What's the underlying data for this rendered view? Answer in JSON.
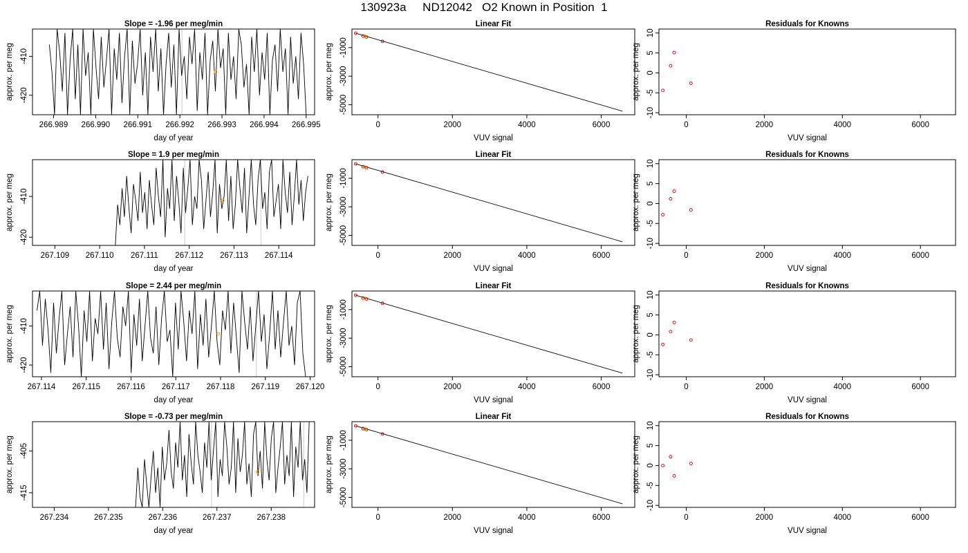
{
  "title": "130923a     ND12042   O2 Known in Position  1",
  "chart_data": [
    {
      "type": "line",
      "title": "Slope =  -1.96  per meg/min",
      "xlabel": "day of year",
      "ylabel": "approx. per meg",
      "xlim": [
        266.9885,
        266.9952
      ],
      "ylim": [
        -425,
        -403
      ],
      "xticks": [
        266.989,
        266.99,
        266.991,
        266.992,
        266.993,
        266.994,
        266.995
      ],
      "xtick_labels": [
        "266.989",
        "266.990",
        "266.991",
        "266.992",
        "266.993",
        "266.994",
        "266.995"
      ],
      "yticks": [
        -410,
        -420
      ],
      "ytick_labels": [
        "-410",
        "-420"
      ],
      "series": [
        {
          "x_start": 266.9889,
          "x_end": 266.995,
          "values": [
            -407,
            -414,
            -425,
            -403,
            -409,
            -419,
            -404,
            -425,
            -411,
            -403,
            -421,
            -407,
            -425,
            -403,
            -415,
            -409,
            -425,
            -403,
            -413,
            -421,
            -405,
            -418,
            -411,
            -403,
            -425,
            -408,
            -416,
            -404,
            -422,
            -410,
            -403,
            -425,
            -406,
            -417,
            -412,
            -403,
            -420,
            -409,
            -425,
            -405,
            -414,
            -403,
            -419,
            -408,
            -425,
            -412,
            -404,
            -418,
            -407,
            -425,
            -403,
            -415,
            -410,
            -421,
            -405,
            -412,
            -403,
            -424,
            -409,
            -416,
            -404,
            -425,
            -411,
            -406,
            -419,
            -403,
            -413,
            -408,
            -425,
            -404,
            -416,
            -410,
            -421,
            -403,
            -407,
            -418,
            -412,
            -425,
            -405,
            -414,
            -403,
            -420,
            -409,
            -416,
            -404,
            -425,
            -411,
            -407,
            -419,
            -403,
            -414,
            -408,
            -425,
            -405,
            -417,
            -410,
            -421,
            -404,
            -412,
            -425
          ]
        }
      ],
      "highlights": [
        {
          "x": 266.99285,
          "y": -414
        }
      ],
      "vlines": [
        266.99205
      ]
    },
    {
      "type": "scatter",
      "title": "Linear Fit",
      "xlabel": "VUV signal",
      "ylabel": "approx. per meg",
      "xlim": [
        -700,
        6900
      ],
      "ylim": [
        -5700,
        300
      ],
      "xticks": [
        0,
        2000,
        4000,
        6000
      ],
      "xtick_labels": [
        "0",
        "2000",
        "4000",
        "6000"
      ],
      "yticks": [
        -1000,
        -3000,
        -5000
      ],
      "ytick_labels": [
        "-1000",
        "-3000",
        "-5000"
      ],
      "points": [
        [
          -600,
          8
        ],
        [
          -400,
          -190
        ],
        [
          -310,
          -260
        ],
        [
          120,
          -560
        ]
      ],
      "highlights": [
        {
          "x": -350,
          "y": -215
        }
      ],
      "fit_line": [
        [
          -600,
          8
        ],
        [
          6570,
          -5450
        ]
      ]
    },
    {
      "type": "scatter",
      "title": "Residuals for Knowns",
      "xlabel": "VUV signal",
      "ylabel": "approx. per meg",
      "xlim": [
        -700,
        6900
      ],
      "ylim": [
        -10.5,
        11
      ],
      "xticks": [
        0,
        2000,
        4000,
        6000
      ],
      "xtick_labels": [
        "0",
        "2000",
        "4000",
        "6000"
      ],
      "yticks": [
        10,
        5,
        0,
        -5,
        -10
      ],
      "ytick_labels": [
        "10",
        "5",
        "0",
        "-5",
        "-10"
      ],
      "points": [
        [
          -600,
          -4.4
        ],
        [
          -400,
          1.8
        ],
        [
          -310,
          5.1
        ],
        [
          120,
          -2.6
        ]
      ]
    },
    {
      "type": "line",
      "title": "Slope =  1.9  per meg/min",
      "xlabel": "day of year",
      "ylabel": "approx. per meg",
      "xlim": [
        267.1085,
        267.1148
      ],
      "ylim": [
        -422,
        -401
      ],
      "xticks": [
        267.109,
        267.11,
        267.111,
        267.112,
        267.113,
        267.114
      ],
      "xtick_labels": [
        "267.109",
        "267.110",
        "267.111",
        "267.112",
        "267.113",
        "267.114"
      ],
      "yticks": [
        -410,
        -420
      ],
      "ytick_labels": [
        "-410",
        "-420"
      ],
      "series": [
        {
          "x_start": 267.11035,
          "x_end": 267.11465,
          "values": [
            -422,
            -412,
            -417,
            -408,
            -415,
            -405,
            -413,
            -419,
            -407,
            -411,
            -416,
            -404,
            -414,
            -409,
            -418,
            -406,
            -412,
            -417,
            -403,
            -410,
            -415,
            -401,
            -420,
            -408,
            -413,
            -401,
            -416,
            -405,
            -411,
            -419,
            -403,
            -414,
            -408,
            -401,
            -417,
            -410,
            -413,
            -401,
            -406,
            -418,
            -411,
            -404,
            -415,
            -409,
            -401,
            -419,
            -407,
            -413,
            -410,
            -401,
            -416,
            -405,
            -418,
            -412,
            -401,
            -408,
            -414,
            -403,
            -419,
            -410,
            -401,
            -412,
            -417,
            -406,
            -401,
            -413,
            -409,
            -418,
            -404,
            -401,
            -415,
            -411,
            -407,
            -418,
            -401,
            -409,
            -414,
            -404,
            -417,
            -410,
            -401,
            -412,
            -406,
            -416,
            -409,
            -405
          ]
        }
      ],
      "highlights": [
        {
          "x": 267.11275,
          "y": -411
        }
      ],
      "vlines": [
        267.1119,
        267.1136
      ]
    },
    {
      "type": "scatter",
      "title": "Linear Fit",
      "xlabel": "VUV signal",
      "ylabel": "approx. per meg",
      "xlim": [
        -700,
        6900
      ],
      "ylim": [
        -5700,
        300
      ],
      "xticks": [
        0,
        2000,
        4000,
        6000
      ],
      "xtick_labels": [
        "0",
        "2000",
        "4000",
        "6000"
      ],
      "yticks": [
        -1000,
        -3000,
        -5000
      ],
      "ytick_labels": [
        "-1000",
        "-3000",
        "-5000"
      ],
      "points": [
        [
          -600,
          8
        ],
        [
          -400,
          -190
        ],
        [
          -310,
          -260
        ],
        [
          120,
          -560
        ]
      ],
      "highlights": [
        {
          "x": -350,
          "y": -215
        }
      ],
      "fit_line": [
        [
          -600,
          8
        ],
        [
          6570,
          -5450
        ]
      ]
    },
    {
      "type": "scatter",
      "title": "Residuals for Knowns",
      "xlabel": "VUV signal",
      "ylabel": "approx. per meg",
      "xlim": [
        -700,
        6900
      ],
      "ylim": [
        -10.5,
        11
      ],
      "xticks": [
        0,
        2000,
        4000,
        6000
      ],
      "xtick_labels": [
        "0",
        "2000",
        "4000",
        "6000"
      ],
      "yticks": [
        10,
        5,
        0,
        -5,
        -10
      ],
      "ytick_labels": [
        "10",
        "5",
        "0",
        "-5",
        "-10"
      ],
      "points": [
        [
          -600,
          -2.8
        ],
        [
          -400,
          1.2
        ],
        [
          -310,
          3.1
        ],
        [
          120,
          -1.6
        ]
      ]
    },
    {
      "type": "line",
      "title": "Slope =  2.44  per meg/min",
      "xlabel": "day of year",
      "ylabel": "approx. per meg",
      "xlim": [
        267.1138,
        267.1201
      ],
      "ylim": [
        -423,
        -401
      ],
      "xticks": [
        267.114,
        267.115,
        267.116,
        267.117,
        267.118,
        267.119,
        267.12
      ],
      "xtick_labels": [
        "267.114",
        "267.115",
        "267.116",
        "267.117",
        "267.118",
        "267.119",
        "267.120"
      ],
      "yticks": [
        -410,
        -420
      ],
      "ytick_labels": [
        "-410",
        "-420"
      ],
      "series": [
        {
          "x_start": 267.1139,
          "x_end": 267.1199,
          "values": [
            -406,
            -401,
            -415,
            -403,
            -411,
            -422,
            -404,
            -417,
            -408,
            -401,
            -420,
            -412,
            -405,
            -418,
            -401,
            -410,
            -423,
            -406,
            -414,
            -401,
            -419,
            -408,
            -412,
            -401,
            -416,
            -404,
            -421,
            -409,
            -401,
            -413,
            -418,
            -405,
            -410,
            -401,
            -422,
            -407,
            -415,
            -403,
            -419,
            -410,
            -401,
            -413,
            -417,
            -405,
            -420,
            -408,
            -401,
            -414,
            -411,
            -423,
            -404,
            -416,
            -401,
            -409,
            -419,
            -406,
            -412,
            -401,
            -421,
            -407,
            -415,
            -403,
            -418,
            -410,
            -401,
            -414,
            -420,
            -406,
            -411,
            -401,
            -417,
            -404,
            -413,
            -422,
            -401,
            -409,
            -416,
            -405,
            -419,
            -410,
            -401,
            -414,
            -407,
            -421,
            -412,
            -401,
            -416,
            -406,
            -418,
            -409,
            -401,
            -415,
            -410,
            -420,
            -404,
            -401,
            -417,
            -423
          ]
        }
      ],
      "highlights": [
        {
          "x": 267.11795,
          "y": -412
        }
      ],
      "vlines": [
        267.1188
      ]
    },
    {
      "type": "scatter",
      "title": "Linear Fit",
      "xlabel": "VUV signal",
      "ylabel": "approx. per meg",
      "xlim": [
        -700,
        6900
      ],
      "ylim": [
        -5700,
        300
      ],
      "xticks": [
        0,
        2000,
        4000,
        6000
      ],
      "xtick_labels": [
        "0",
        "2000",
        "4000",
        "6000"
      ],
      "yticks": [
        -1000,
        -3000,
        -5000
      ],
      "ytick_labels": [
        "-1000",
        "-3000",
        "-5000"
      ],
      "points": [
        [
          -600,
          8
        ],
        [
          -400,
          -190
        ],
        [
          -310,
          -260
        ],
        [
          120,
          -560
        ]
      ],
      "highlights": [
        {
          "x": -350,
          "y": -215
        }
      ],
      "fit_line": [
        [
          -600,
          8
        ],
        [
          6570,
          -5450
        ]
      ]
    },
    {
      "type": "scatter",
      "title": "Residuals for Knowns",
      "xlabel": "VUV signal",
      "ylabel": "approx. per meg",
      "xlim": [
        -700,
        6900
      ],
      "ylim": [
        -10.5,
        11
      ],
      "xticks": [
        0,
        2000,
        4000,
        6000
      ],
      "xtick_labels": [
        "0",
        "2000",
        "4000",
        "6000"
      ],
      "yticks": [
        10,
        5,
        0,
        -5,
        -10
      ],
      "ytick_labels": [
        "10",
        "5",
        "0",
        "-5",
        "-10"
      ],
      "points": [
        [
          -600,
          -2.4
        ],
        [
          -400,
          0.8
        ],
        [
          -310,
          3.1
        ],
        [
          120,
          -1.3
        ]
      ]
    },
    {
      "type": "line",
      "title": "Slope =  -0.73  per meg/min",
      "xlabel": "day of year",
      "ylabel": "approx. per meg",
      "xlim": [
        267.2336,
        267.2388
      ],
      "ylim": [
        -418.5,
        -398
      ],
      "xticks": [
        267.234,
        267.235,
        267.236,
        267.237,
        267.238
      ],
      "xtick_labels": [
        "267.234",
        "267.235",
        "267.236",
        "267.237",
        "267.238"
      ],
      "yticks": [
        -405,
        -415
      ],
      "ytick_labels": [
        "-405",
        "-415"
      ],
      "series": [
        {
          "x_start": 267.2355,
          "x_end": 267.2387,
          "values": [
            -418.5,
            -409,
            -416,
            -418.5,
            -407,
            -413,
            -418.5,
            -411,
            -405,
            -415,
            -409,
            -418.5,
            -404,
            -412,
            -408,
            -400,
            -410,
            -414,
            -403,
            -409,
            -398,
            -412,
            -406,
            -416,
            -401,
            -408,
            -413,
            -398,
            -406,
            -410,
            -415,
            -403,
            -409,
            -398,
            -412,
            -405,
            -398,
            -416,
            -407,
            -411,
            -398,
            -404,
            -413,
            -409,
            -398,
            -415,
            -402,
            -410,
            -406,
            -398,
            -413,
            -408,
            -416,
            -401,
            -398,
            -411,
            -405,
            -414,
            -398,
            -407,
            -412,
            -402,
            -398,
            -415,
            -409,
            -404,
            -398,
            -413,
            -406,
            -411,
            -398,
            -416,
            -404,
            -409,
            -398,
            -412,
            -407,
            -415,
            -398
          ]
        }
      ],
      "highlights": [
        {
          "x": 267.23775,
          "y": -410
        }
      ],
      "vlines": [
        267.2369,
        267.2386
      ]
    },
    {
      "type": "scatter",
      "title": "Linear Fit",
      "xlabel": "VUV signal",
      "ylabel": "approx. per meg",
      "xlim": [
        -700,
        6900
      ],
      "ylim": [
        -5700,
        300
      ],
      "xticks": [
        0,
        2000,
        4000,
        6000
      ],
      "xtick_labels": [
        "0",
        "2000",
        "4000",
        "6000"
      ],
      "yticks": [
        -1000,
        -3000,
        -5000
      ],
      "ytick_labels": [
        "-1000",
        "-3000",
        "-5000"
      ],
      "points": [
        [
          -600,
          8
        ],
        [
          -400,
          -190
        ],
        [
          -310,
          -260
        ],
        [
          120,
          -560
        ]
      ],
      "highlights": [
        {
          "x": -350,
          "y": -215
        }
      ],
      "fit_line": [
        [
          -600,
          8
        ],
        [
          6570,
          -5450
        ]
      ]
    },
    {
      "type": "scatter",
      "title": "Residuals for Knowns",
      "xlabel": "VUV signal",
      "ylabel": "approx. per meg",
      "xlim": [
        -700,
        6900
      ],
      "ylim": [
        -10.5,
        11
      ],
      "xticks": [
        0,
        2000,
        4000,
        6000
      ],
      "xtick_labels": [
        "0",
        "2000",
        "4000",
        "6000"
      ],
      "yticks": [
        10,
        5,
        0,
        -5,
        -10
      ],
      "ytick_labels": [
        "10",
        "5",
        "0",
        "-5",
        "-10"
      ],
      "points": [
        [
          -600,
          0.0
        ],
        [
          -400,
          2.2
        ],
        [
          -310,
          -2.6
        ],
        [
          120,
          0.5
        ]
      ]
    }
  ],
  "colors": {
    "line": "#000000",
    "point": "#cc0000",
    "highlight": "#ff9900",
    "vline": "#cccccc",
    "frame": "#000000"
  }
}
